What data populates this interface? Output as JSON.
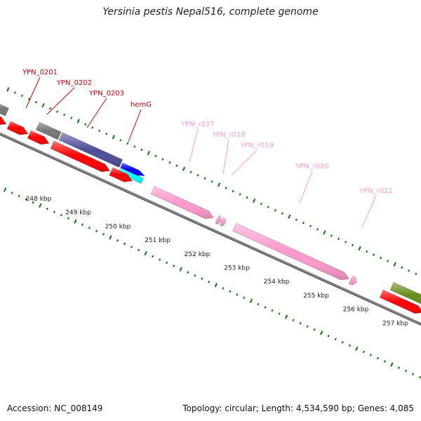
{
  "title": "Yersinia pestis Nepal516, complete genome",
  "footer": {
    "accession": "Accession: NC_008149",
    "summary": "Topology: circular; Length: 4,534,590 bp; Genes: 4,085"
  },
  "colors": {
    "cds_forward": "#ff0000",
    "cds_reverse_gray": "#777777",
    "cds_purple": "#4d4d99",
    "cds_blue": "#0000ff",
    "cds_cyan": "#00ffff",
    "cds_olive": "#668c1a",
    "rna": "#ff99cc",
    "gene_label": "#cc0000",
    "rna_label": "#ff99cc",
    "tick": "#1a801a",
    "backbone": "#808080"
  },
  "scale": {
    "ticks": [
      "248 kbp",
      "249 kbp",
      "250 kbp",
      "251 kbp",
      "252 kbp",
      "253 kbp",
      "254 kbp",
      "255 kbp",
      "256 kbp",
      "257 kbp"
    ]
  },
  "gene_labels": [
    "YPN_0201",
    "YPN_0202",
    "YPN_0203",
    "hemG"
  ],
  "rna_labels": [
    "YPN_r017",
    "YPN_r018",
    "YPN_r019",
    "YPN_r020",
    "YPN_r021"
  ]
}
